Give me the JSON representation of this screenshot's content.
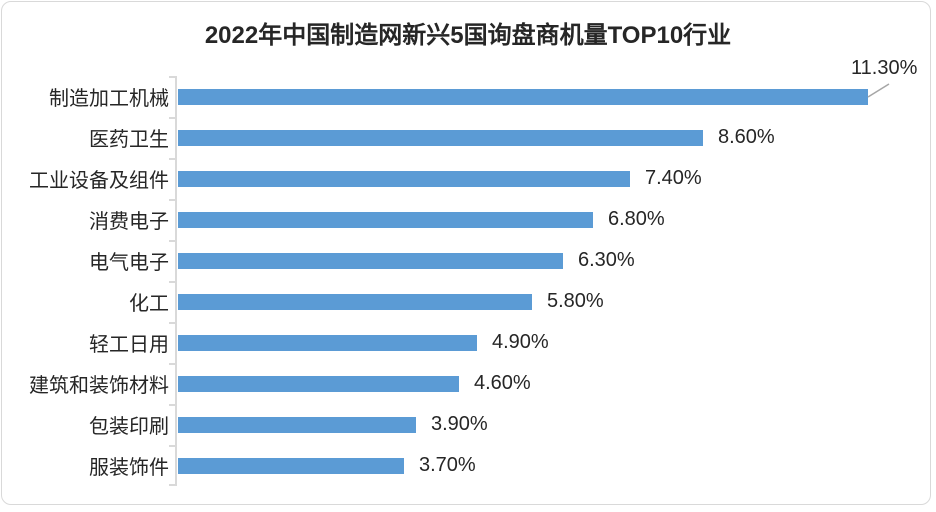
{
  "chart_data": {
    "type": "bar",
    "orientation": "horizontal",
    "title": "2022年中国制造网新兴5国询盘商机量TOP10行业",
    "categories": [
      "制造加工机械",
      "医药卫生",
      "工业设备及组件",
      "消费电子",
      "电气电子",
      "化工",
      "轻工日用",
      "建筑和装饰材料",
      "包装印刷",
      "服装饰件"
    ],
    "values": [
      11.3,
      8.6,
      7.4,
      6.8,
      6.3,
      5.8,
      4.9,
      4.6,
      3.9,
      3.7
    ],
    "value_labels": [
      "11.30%",
      "8.60%",
      "7.40%",
      "6.80%",
      "6.30%",
      "5.80%",
      "4.90%",
      "4.60%",
      "3.90%",
      "3.70%"
    ],
    "unit": "%",
    "xlim": [
      0,
      12.3
    ],
    "grid": false,
    "legend": false,
    "value_axis_visible": false,
    "first_label_placement": "callout-above-with-leader-line",
    "colors": {
      "bar": "#5b9bd5",
      "axis": "#d9d9d9",
      "frame_border": "#d9d9d9",
      "text": "#262626",
      "leader_line": "#a6a6a6",
      "background": "#ffffff"
    }
  }
}
